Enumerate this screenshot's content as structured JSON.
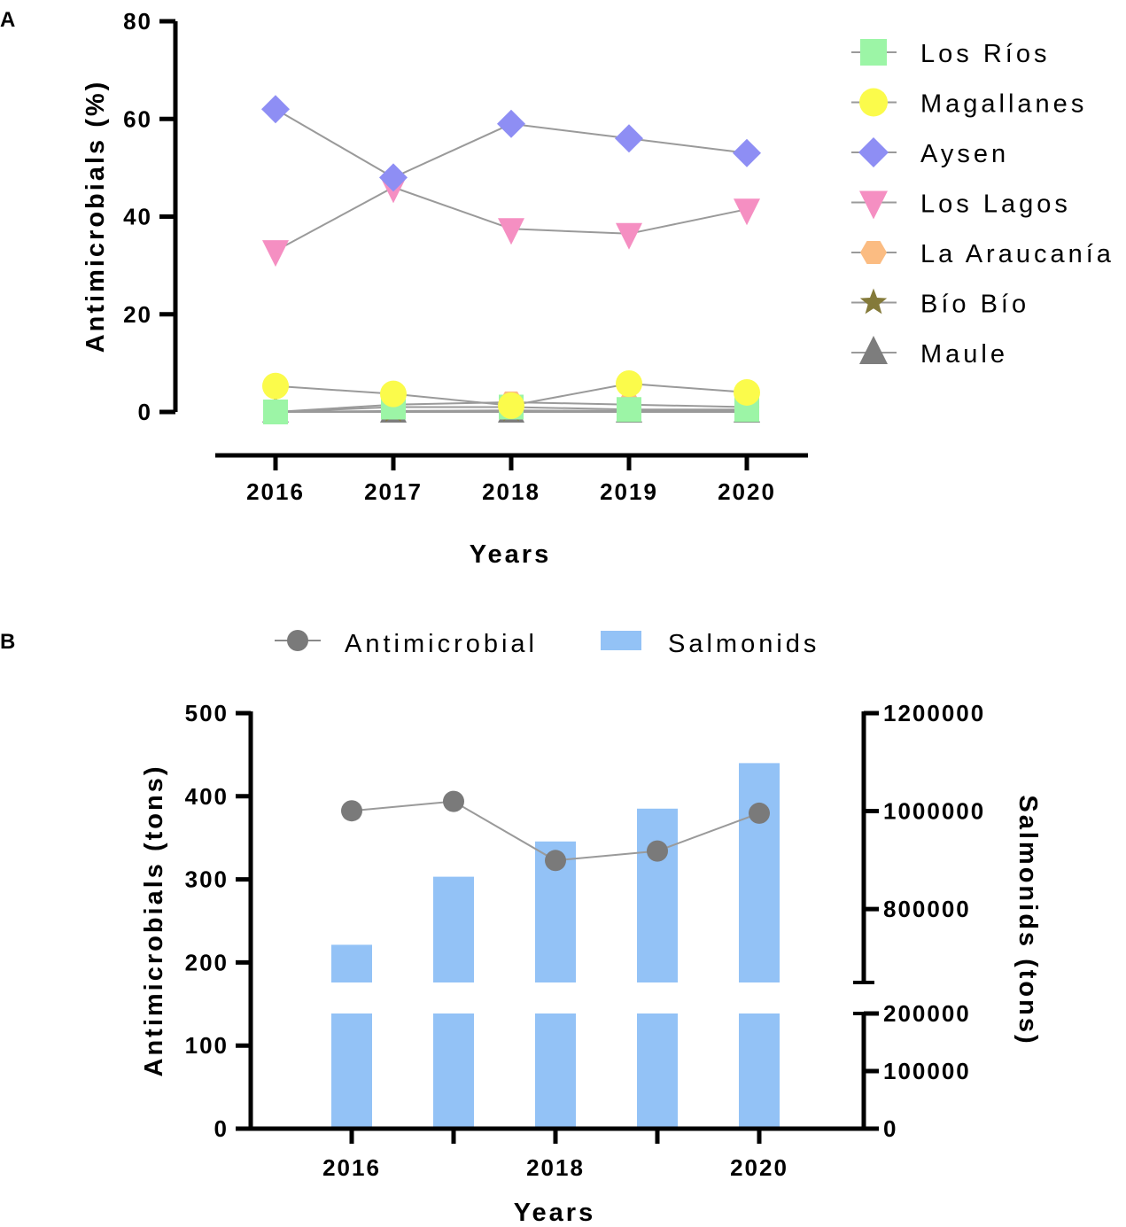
{
  "chart_data": [
    {
      "panel_label": "A",
      "type": "line",
      "xlabel": "Years",
      "ylabel": "Antimicrobials (%)",
      "ylim": [
        0,
        80
      ],
      "yticks": [
        "0",
        "20",
        "40",
        "60",
        "80"
      ],
      "categories": [
        "2016",
        "2017",
        "2018",
        "2019",
        "2020"
      ],
      "legend_position": "right",
      "series": [
        {
          "name": "Los Ríos",
          "marker": "square",
          "color": "#9cf5a6",
          "values": [
            0.0,
            1.0,
            1.0,
            0.5,
            0.5
          ]
        },
        {
          "name": "Magallanes",
          "marker": "circle",
          "color": "#fbfb4b",
          "values": [
            5.3,
            3.7,
            1.3,
            5.8,
            4.0
          ]
        },
        {
          "name": "Aysen",
          "marker": "diamond",
          "color": "#8e8ef4",
          "values": [
            62.0,
            48.0,
            59.0,
            56.0,
            53.0
          ]
        },
        {
          "name": "Los Lagos",
          "marker": "triangle-down",
          "color": "#f58fc2",
          "values": [
            33.0,
            46.0,
            37.5,
            36.5,
            41.5
          ]
        },
        {
          "name": "La Araucanía",
          "marker": "hexagon",
          "color": "#fbbc82",
          "values": [
            0.0,
            1.5,
            2.0,
            1.5,
            1.0
          ]
        },
        {
          "name": "Bío Bío",
          "marker": "star",
          "color": "#847a3a",
          "values": [
            0.0,
            0.2,
            0.3,
            0.2,
            0.2
          ]
        },
        {
          "name": "Maule",
          "marker": "triangle-up",
          "color": "#7d7d7d",
          "values": [
            0.0,
            0.0,
            0.0,
            0.0,
            0.0
          ]
        }
      ]
    },
    {
      "panel_label": "B",
      "type": "bar+line",
      "xlabel": "Years",
      "ylabel_left": "Antimicrobials (tons)",
      "ylabel_right": "Salmonids (tons)",
      "categories": [
        "2016",
        "2017",
        "2018",
        "2019",
        "2020"
      ],
      "xticks": [
        "2016",
        "2018",
        "2020"
      ],
      "ylim_left": [
        0,
        500
      ],
      "yticks_left": [
        "0",
        "100",
        "200",
        "300",
        "400",
        "500"
      ],
      "yticks_right": [
        "0",
        "100000",
        "200000",
        "800000",
        "1000000",
        "1200000"
      ],
      "right_axis_break": [
        200000,
        650000
      ],
      "right_axis_upper_range": [
        650000,
        1200000
      ],
      "legend_position": "top-center",
      "series": [
        {
          "name": "Antimicrobial",
          "type": "line",
          "axis": "left",
          "color": "#7a7a7a",
          "values": [
            382.5,
            393.8,
            322.7,
            334.1,
            379.6
          ]
        },
        {
          "name": "Salmonids",
          "type": "bar",
          "axis": "right",
          "color": "#93c2f6",
          "values": [
            727000,
            866000,
            938000,
            1005000,
            1098000
          ]
        }
      ]
    }
  ]
}
